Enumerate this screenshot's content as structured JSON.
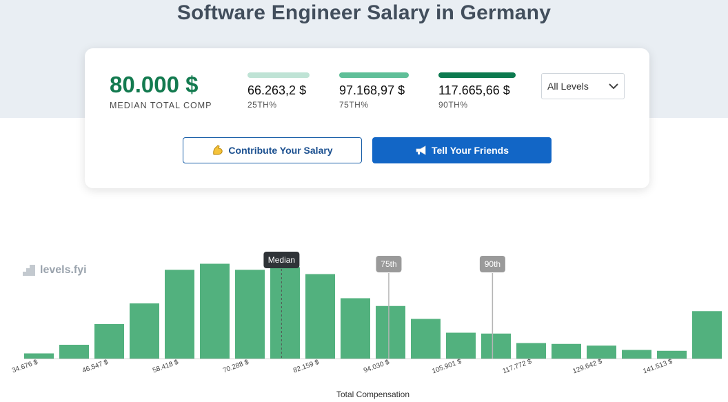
{
  "page": {
    "title": "Software Engineer Salary in Germany"
  },
  "summary": {
    "median_value": "80.000 $",
    "median_label": "MEDIAN TOTAL COMP",
    "percentiles": [
      {
        "value": "66.263,2 $",
        "label": "25TH%",
        "color": "#bfe3d5"
      },
      {
        "value": "97.168,97 $",
        "label": "75TH%",
        "color": "#5fbf98"
      },
      {
        "value": "117.665,66 $",
        "label": "90TH%",
        "color": "#0d7a4f"
      }
    ],
    "level_select": {
      "selected": "All Levels"
    }
  },
  "buttons": {
    "contribute": "Contribute Your Salary",
    "tell": "Tell Your Friends"
  },
  "brand": {
    "name": "levels.fyi"
  },
  "colors": {
    "accent_green": "#137a4f",
    "bar_green": "#52b17e",
    "primary_blue": "#1266c6"
  },
  "chart_data": {
    "type": "bar",
    "xlabel": "Total Compensation",
    "tick_labels": [
      "34.676 $",
      "46.547 $",
      "58.418 $",
      "70.288 $",
      "82.159 $",
      "94.030 $",
      "105.901 $",
      "117.772 $",
      "129.642 $",
      "141.513 $"
    ],
    "values": [
      6,
      16,
      40,
      64,
      103,
      110,
      103,
      106,
      98,
      70,
      61,
      46,
      30,
      29,
      18,
      17,
      15,
      10,
      9,
      55
    ],
    "ylim": [
      0,
      120
    ],
    "markers": [
      {
        "label": "Median",
        "position": 7.4,
        "style": "dark"
      },
      {
        "label": "75th",
        "position": 10.45,
        "style": "gray"
      },
      {
        "label": "90th",
        "position": 13.4,
        "style": "gray"
      }
    ]
  }
}
